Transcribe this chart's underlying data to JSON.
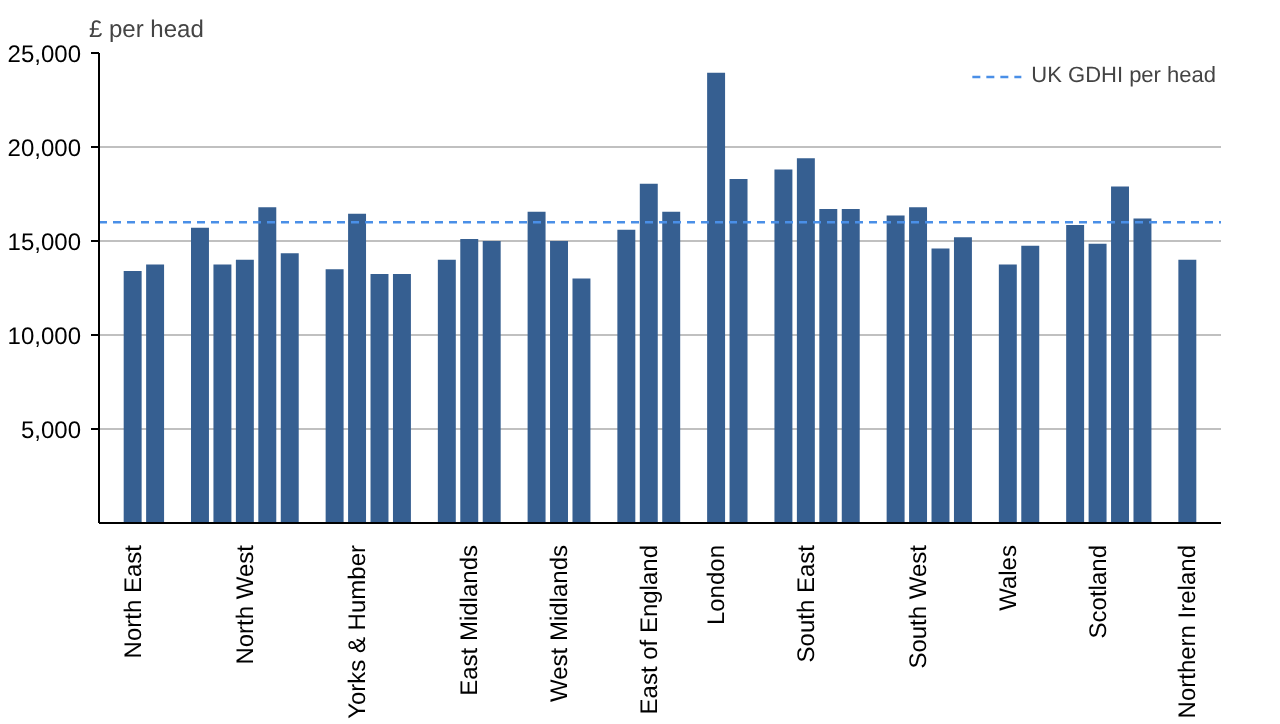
{
  "chart_data": {
    "type": "bar",
    "ylabel": "£ per head",
    "categories": [
      null,
      "North East",
      null,
      null,
      null,
      null,
      "North West",
      null,
      null,
      null,
      null,
      "Yorks & Humber",
      null,
      null,
      null,
      null,
      "East Midlands",
      null,
      null,
      null,
      "West Midlands",
      null,
      null,
      null,
      "East of England",
      null,
      null,
      "London",
      null,
      null,
      null,
      "South East",
      null,
      null,
      null,
      null,
      "South West",
      null,
      null,
      null,
      "Wales",
      null,
      null,
      null,
      "Scotland",
      null,
      null,
      null,
      "Northern Ireland",
      null
    ],
    "values": [
      null,
      13400,
      13750,
      null,
      15700,
      13750,
      14000,
      16800,
      14350,
      null,
      13500,
      16450,
      13250,
      13250,
      null,
      14000,
      15100,
      15000,
      null,
      16550,
      15000,
      13000,
      null,
      15600,
      18050,
      16550,
      null,
      23950,
      18300,
      null,
      18800,
      19400,
      16700,
      16700,
      null,
      16350,
      16800,
      14600,
      15200,
      null,
      13750,
      14750,
      null,
      15850,
      14850,
      17900,
      16200,
      null,
      14000,
      null
    ],
    "color": "#365f91",
    "ylim": [
      0,
      25000
    ],
    "yticks": [
      {
        "value": 5000,
        "label": "5,000"
      },
      {
        "value": 10000,
        "label": "10,000"
      },
      {
        "value": 15000,
        "label": "15,000"
      },
      {
        "value": 20000,
        "label": "20,000"
      },
      {
        "value": 25000,
        "label": "25,000"
      }
    ],
    "grid": "y",
    "legend": "top right",
    "ref_lines": [
      {
        "axis": "y",
        "value": 16000,
        "label": "UK GDHI per head",
        "color": "#4a8fe7",
        "line_style": "dashed"
      }
    ]
  }
}
